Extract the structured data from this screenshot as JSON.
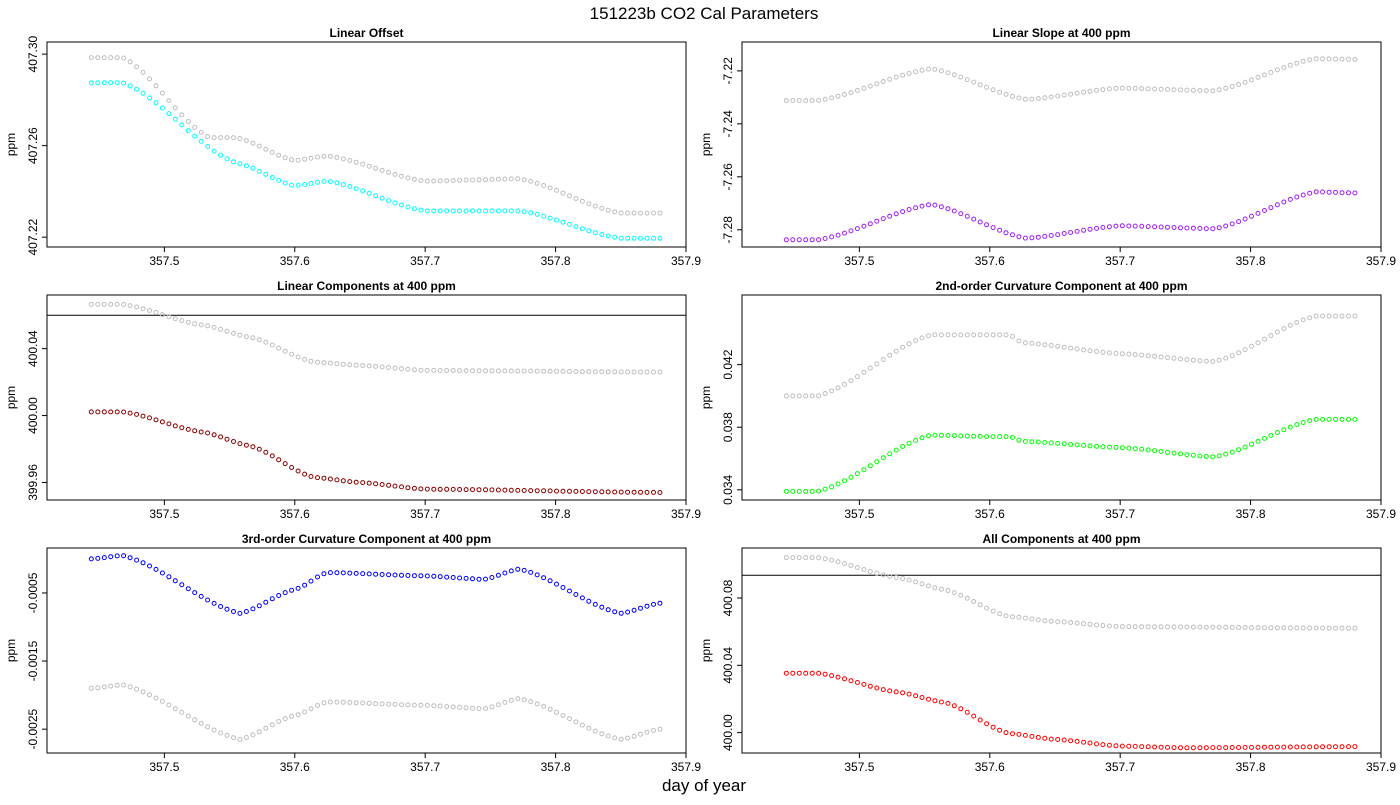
{
  "figure": {
    "title": "151223b   CO2 Cal Parameters",
    "xlabel": "day of year"
  },
  "chart_data": [
    {
      "type": "scatter",
      "title": "Linear Offset",
      "ylabel": "ppm",
      "xlim": [
        357.41,
        357.9
      ],
      "ylim": [
        407.2157,
        407.3053
      ],
      "xticks": [
        357.5,
        357.6,
        357.7,
        357.8,
        357.9
      ],
      "xtick_labels": [
        "357.5",
        "357.6",
        "357.7",
        "357.8",
        "357.9"
      ],
      "yticks": [
        407.22,
        407.26,
        407.3
      ],
      "ytick_labels": [
        "407.22",
        "407.26",
        "407.30"
      ],
      "reference_line": null,
      "series": [
        {
          "color": "#bebebe",
          "keypoints": [
            [
              357.444,
              407.2985
            ],
            [
              357.468,
              407.2985
            ],
            [
              357.535,
              407.2635
            ],
            [
              357.555,
              407.2635
            ],
            [
              357.6,
              407.2535
            ],
            [
              357.625,
              407.2555
            ],
            [
              357.7,
              407.2445
            ],
            [
              357.772,
              407.2455
            ],
            [
              357.85,
              407.2305
            ],
            [
              357.88,
              407.2305
            ]
          ]
        },
        {
          "color": "#00ffff",
          "keypoints": [
            [
              357.444,
              407.2875
            ],
            [
              357.468,
              407.2875
            ],
            [
              357.555,
              407.2525
            ],
            [
              357.6,
              407.2425
            ],
            [
              357.625,
              407.2445
            ],
            [
              357.7,
              407.2315
            ],
            [
              357.772,
              407.2315
            ],
            [
              357.85,
              407.2195
            ],
            [
              357.88,
              407.2195
            ]
          ]
        }
      ]
    },
    {
      "type": "scatter",
      "title": "Linear Slope at 400 ppm",
      "ylabel": "ppm",
      "xlim": [
        357.41,
        357.9
      ],
      "ylim": [
        -7.2865,
        -7.2091
      ],
      "xticks": [
        357.5,
        357.6,
        357.7,
        357.8,
        357.9
      ],
      "xtick_labels": [
        "357.5",
        "357.6",
        "357.7",
        "357.8",
        "357.9"
      ],
      "yticks": [
        -7.28,
        -7.26,
        -7.24,
        -7.22
      ],
      "ytick_labels": [
        "-7.28",
        "-7.26",
        "-7.24",
        "-7.22"
      ],
      "reference_line": null,
      "series": [
        {
          "color": "#bebebe",
          "keypoints": [
            [
              357.444,
              -7.2312
            ],
            [
              357.468,
              -7.2312
            ],
            [
              357.555,
              -7.2192
            ],
            [
              357.628,
              -7.2308
            ],
            [
              357.7,
              -7.2265
            ],
            [
              357.772,
              -7.2275
            ],
            [
              357.85,
              -7.2154
            ],
            [
              357.88,
              -7.2157
            ]
          ]
        },
        {
          "color": "#a020f0",
          "keypoints": [
            [
              357.444,
              -7.2838
            ],
            [
              357.468,
              -7.2838
            ],
            [
              357.555,
              -7.2704
            ],
            [
              357.628,
              -7.2832
            ],
            [
              357.7,
              -7.2785
            ],
            [
              357.772,
              -7.2796
            ],
            [
              357.85,
              -7.2657
            ],
            [
              357.88,
              -7.2661
            ]
          ]
        }
      ]
    },
    {
      "type": "scatter",
      "title": "Linear Components at 400 ppm",
      "ylabel": "ppm",
      "xlim": [
        357.41,
        357.9
      ],
      "ylim": [
        399.9495,
        400.0721
      ],
      "xticks": [
        357.5,
        357.6,
        357.7,
        357.8,
        357.9
      ],
      "xtick_labels": [
        "357.5",
        "357.6",
        "357.7",
        "357.8",
        "357.9"
      ],
      "yticks": [
        399.96,
        400.0,
        400.04
      ],
      "ytick_labels": [
        "399.96",
        "400.00",
        "400.04"
      ],
      "reference_line": 400.06,
      "series": [
        {
          "color": "#bebebe",
          "keypoints": [
            [
              357.444,
              400.0665
            ],
            [
              357.468,
              400.0665
            ],
            [
              357.53,
              400.054
            ],
            [
              357.565,
              400.047
            ],
            [
              357.615,
              400.032
            ],
            [
              357.65,
              400.03
            ],
            [
              357.7,
              400.027
            ],
            [
              357.88,
              400.026
            ]
          ]
        },
        {
          "color": "#8b0000",
          "keypoints": [
            [
              357.444,
              400.0022
            ],
            [
              357.468,
              400.0022
            ],
            [
              357.53,
              399.99
            ],
            [
              357.565,
              399.982
            ],
            [
              357.615,
              399.963
            ],
            [
              357.65,
              399.96
            ],
            [
              357.7,
              399.956
            ],
            [
              357.88,
              399.954
            ]
          ]
        }
      ]
    },
    {
      "type": "scatter",
      "title": "2nd-order Curvature Component at 400 ppm",
      "ylabel": "ppm",
      "xlim": [
        357.41,
        357.9
      ],
      "ylim": [
        0.03335,
        0.04645
      ],
      "xticks": [
        357.5,
        357.6,
        357.7,
        357.8,
        357.9
      ],
      "xtick_labels": [
        "357.5",
        "357.6",
        "357.7",
        "357.8",
        "357.9"
      ],
      "yticks": [
        0.034,
        0.038,
        0.042
      ],
      "ytick_labels": [
        "0.034",
        "0.038",
        "0.042"
      ],
      "reference_line": null,
      "series": [
        {
          "color": "#bebebe",
          "keypoints": [
            [
              357.444,
              0.04
            ],
            [
              357.468,
              0.04
            ],
            [
              357.555,
              0.0439
            ],
            [
              357.6,
              0.0439
            ],
            [
              357.615,
              0.0439
            ],
            [
              357.625,
              0.0434
            ],
            [
              357.7,
              0.0427
            ],
            [
              357.772,
              0.0422
            ],
            [
              357.85,
              0.0451
            ],
            [
              357.88,
              0.0451
            ]
          ]
        },
        {
          "color": "#00ff00",
          "keypoints": [
            [
              357.444,
              0.0339
            ],
            [
              357.468,
              0.0339
            ],
            [
              357.555,
              0.0375
            ],
            [
              357.6,
              0.0374
            ],
            [
              357.615,
              0.0374
            ],
            [
              357.625,
              0.0371
            ],
            [
              357.7,
              0.0367
            ],
            [
              357.772,
              0.0361
            ],
            [
              357.85,
              0.0385
            ],
            [
              357.88,
              0.0385
            ]
          ]
        }
      ]
    },
    {
      "type": "scatter",
      "title": "3rd-order Curvature Component at 400 ppm",
      "ylabel": "ppm",
      "xlim": [
        357.41,
        357.9
      ],
      "ylim": [
        -0.00285,
        0.00016
      ],
      "xticks": [
        357.5,
        357.6,
        357.7,
        357.8,
        357.9
      ],
      "xtick_labels": [
        "357.5",
        "357.6",
        "357.7",
        "357.8",
        "357.9"
      ],
      "yticks": [
        -0.0025,
        -0.0015,
        -0.0005
      ],
      "ytick_labels": [
        "-0.0025",
        "-0.0015",
        "-0.0005"
      ],
      "reference_line": null,
      "series": [
        {
          "color": "#bebebe",
          "keypoints": [
            [
              357.444,
              -0.0019
            ],
            [
              357.468,
              -0.00185
            ],
            [
              357.558,
              -0.00265
            ],
            [
              357.6,
              -0.0023
            ],
            [
              357.625,
              -0.0021
            ],
            [
              357.7,
              -0.00215
            ],
            [
              357.745,
              -0.0022
            ],
            [
              357.772,
              -0.00205
            ],
            [
              357.85,
              -0.00265
            ],
            [
              357.88,
              -0.0025
            ]
          ]
        },
        {
          "color": "#0000ff",
          "keypoints": [
            [
              357.444,
              0.0
            ],
            [
              357.468,
              5e-05
            ],
            [
              357.558,
              -0.0008
            ],
            [
              357.6,
              -0.00045
            ],
            [
              357.625,
              -0.0002
            ],
            [
              357.7,
              -0.00025
            ],
            [
              357.745,
              -0.0003
            ],
            [
              357.772,
              -0.00015
            ],
            [
              357.85,
              -0.0008
            ],
            [
              357.88,
              -0.00065
            ]
          ]
        }
      ]
    },
    {
      "type": "scatter",
      "title": "All Components at 400 ppm",
      "ylabel": "ppm",
      "xlim": [
        357.41,
        357.9
      ],
      "ylim": [
        399.9879,
        400.1097
      ],
      "xticks": [
        357.5,
        357.6,
        357.7,
        357.8,
        357.9
      ],
      "xtick_labels": [
        "357.5",
        "357.6",
        "357.7",
        "357.8",
        "357.9"
      ],
      "yticks": [
        400.0,
        400.04,
        400.08
      ],
      "ytick_labels": [
        "400.00",
        "400.04",
        "400.08"
      ],
      "reference_line": 400.0935,
      "series": [
        {
          "color": "#bebebe",
          "keypoints": [
            [
              357.444,
              400.104
            ],
            [
              357.468,
              400.104
            ],
            [
              357.53,
              400.092
            ],
            [
              357.565,
              400.085
            ],
            [
              357.615,
              400.069
            ],
            [
              357.65,
              400.066
            ],
            [
              357.7,
              400.063
            ],
            [
              357.88,
              400.062
            ]
          ]
        },
        {
          "color": "#ff0000",
          "keypoints": [
            [
              357.444,
              400.0353
            ],
            [
              357.468,
              400.0353
            ],
            [
              357.53,
              400.024
            ],
            [
              357.565,
              400.018
            ],
            [
              357.615,
              399.9995
            ],
            [
              357.65,
              399.996
            ],
            [
              357.7,
              399.992
            ],
            [
              357.75,
              399.991
            ],
            [
              357.88,
              399.9917
            ]
          ]
        }
      ]
    }
  ]
}
